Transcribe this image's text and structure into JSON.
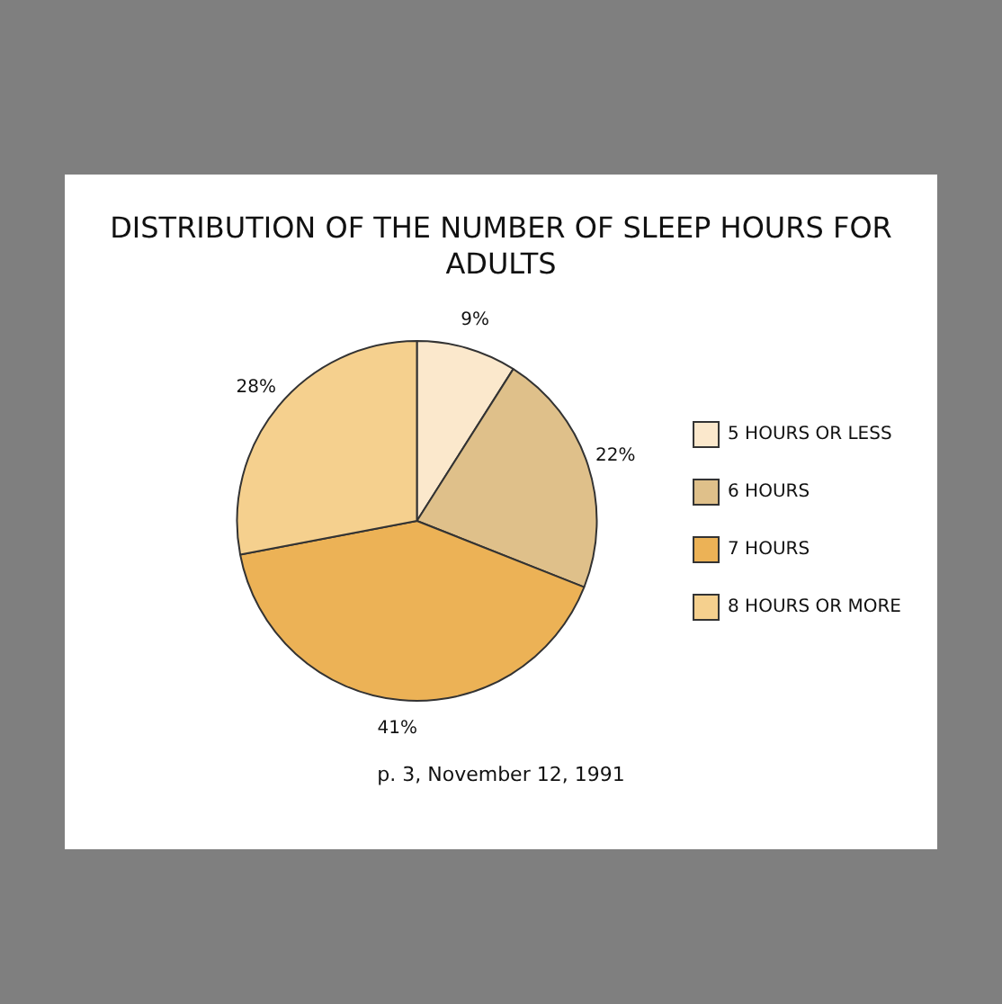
{
  "chart_data": {
    "type": "pie",
    "title": "DISTRIBUTION OF THE NUMBER OF SLEEP HOURS FOR ADULTS",
    "categories": [
      "5 HOURS OR LESS",
      "6 HOURS",
      "7 HOURS",
      "8 HOURS OR MORE"
    ],
    "values": [
      9,
      22,
      41,
      28
    ],
    "value_labels": [
      "9%",
      "22%",
      "41%",
      "28%"
    ],
    "colors": [
      "#fbe8cc",
      "#dfc08a",
      "#ecb256",
      "#f5d08e"
    ],
    "legend": "right",
    "annotations": [
      "p. 3, November 12, 1991"
    ]
  }
}
